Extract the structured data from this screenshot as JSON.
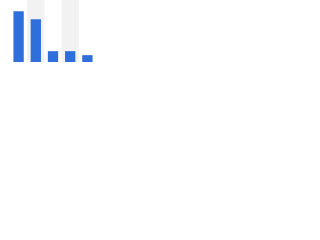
{
  "chart_data": {
    "type": "bar",
    "categories": [
      null,
      null,
      null,
      null,
      null
    ],
    "values": [
      89,
      75,
      19,
      19,
      12
    ],
    "color": "#2f6fdc",
    "ylim": [
      0,
      100
    ]
  }
}
